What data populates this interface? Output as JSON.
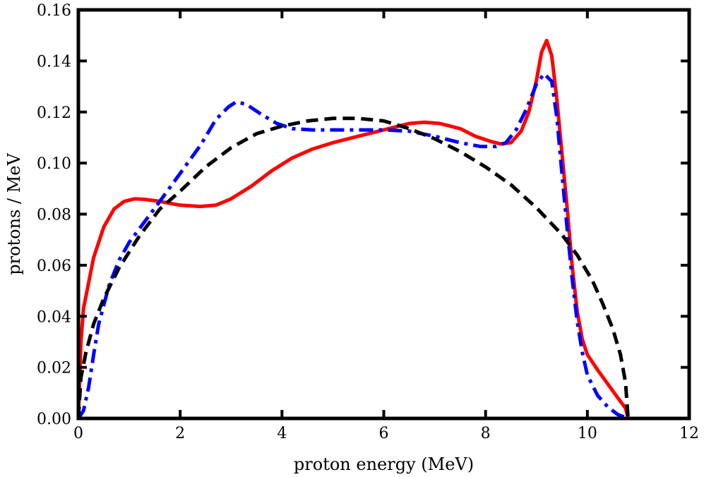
{
  "chart_data": {
    "type": "line",
    "title": "",
    "xlabel": "proton energy (MeV)",
    "ylabel": "protons / MeV",
    "xlim": [
      0,
      12
    ],
    "ylim": [
      0,
      0.16
    ],
    "xticks": [
      0,
      2,
      4,
      6,
      8,
      10,
      12
    ],
    "xtick_labels": [
      "0",
      "2",
      "4",
      "6",
      "8",
      "10",
      "12"
    ],
    "yticks": [
      0,
      0.02,
      0.04,
      0.06,
      0.08,
      0.1,
      0.12,
      0.14,
      0.16
    ],
    "ytick_labels": [
      "0.00",
      "0.02",
      "0.04",
      "0.06",
      "0.08",
      "0.10",
      "0.12",
      "0.14",
      "0.16"
    ],
    "grid": false,
    "legend": "none",
    "series": [
      {
        "name": "red-solid",
        "color": "#ff0000",
        "style": "solid",
        "x": [
          0.0,
          0.05,
          0.1,
          0.2,
          0.3,
          0.5,
          0.7,
          0.9,
          1.1,
          1.3,
          1.6,
          2.0,
          2.4,
          2.7,
          3.0,
          3.4,
          3.8,
          4.2,
          4.6,
          5.0,
          5.5,
          6.0,
          6.5,
          6.8,
          7.1,
          7.5,
          7.8,
          8.1,
          8.3,
          8.5,
          8.7,
          8.85,
          9.0,
          9.1,
          9.2,
          9.3,
          9.4,
          9.5,
          9.6,
          9.7,
          9.8,
          9.9,
          10.0,
          10.2,
          10.4,
          10.6,
          10.75,
          10.8
        ],
        "values": [
          0.0,
          0.03,
          0.043,
          0.053,
          0.063,
          0.075,
          0.082,
          0.085,
          0.086,
          0.0858,
          0.085,
          0.0835,
          0.083,
          0.0835,
          0.086,
          0.091,
          0.097,
          0.102,
          0.1055,
          0.108,
          0.1105,
          0.113,
          0.1155,
          0.116,
          0.1155,
          0.1135,
          0.1105,
          0.1085,
          0.1075,
          0.108,
          0.1125,
          0.12,
          0.1325,
          0.1435,
          0.148,
          0.142,
          0.125,
          0.104,
          0.083,
          0.06,
          0.042,
          0.031,
          0.025,
          0.019,
          0.0135,
          0.008,
          0.004,
          0.0
        ]
      },
      {
        "name": "blue-dashdot",
        "color": "#0000ff",
        "style": "dashdot",
        "x": [
          0.0,
          0.1,
          0.2,
          0.3,
          0.4,
          0.6,
          0.8,
          1.0,
          1.3,
          1.6,
          2.0,
          2.4,
          2.7,
          2.95,
          3.1,
          3.3,
          3.6,
          3.9,
          4.2,
          4.6,
          5.0,
          5.5,
          6.0,
          6.5,
          7.0,
          7.5,
          7.9,
          8.2,
          8.4,
          8.6,
          8.8,
          9.0,
          9.15,
          9.3,
          9.4,
          9.5,
          9.6,
          9.7,
          9.8,
          9.9,
          10.0,
          10.2,
          10.4,
          10.6,
          10.8
        ],
        "values": [
          0.0,
          0.003,
          0.012,
          0.025,
          0.037,
          0.052,
          0.062,
          0.069,
          0.077,
          0.085,
          0.096,
          0.107,
          0.117,
          0.122,
          0.124,
          0.123,
          0.119,
          0.1155,
          0.1135,
          0.113,
          0.113,
          0.113,
          0.113,
          0.1125,
          0.1105,
          0.108,
          0.1065,
          0.1065,
          0.108,
          0.113,
          0.121,
          0.131,
          0.135,
          0.132,
          0.118,
          0.096,
          0.075,
          0.055,
          0.038,
          0.026,
          0.017,
          0.009,
          0.0045,
          0.0015,
          0.0
        ]
      },
      {
        "name": "black-dashed",
        "color": "#000000",
        "style": "dashed",
        "x": [
          0.0,
          0.05,
          0.15,
          0.3,
          0.5,
          0.8,
          1.2,
          1.6,
          2.0,
          2.5,
          3.0,
          3.5,
          4.0,
          4.5,
          5.0,
          5.5,
          6.0,
          6.5,
          7.0,
          7.5,
          8.0,
          8.5,
          9.0,
          9.5,
          9.8,
          10.1,
          10.3,
          10.5,
          10.65,
          10.75,
          10.8
        ],
        "values": [
          0.0,
          0.016,
          0.026,
          0.037,
          0.047,
          0.059,
          0.0715,
          0.082,
          0.089,
          0.0985,
          0.106,
          0.1115,
          0.1145,
          0.1165,
          0.1175,
          0.1175,
          0.1165,
          0.1135,
          0.1095,
          0.1045,
          0.0985,
          0.0915,
          0.0825,
          0.072,
          0.064,
          0.054,
          0.045,
          0.035,
          0.025,
          0.014,
          0.0
        ]
      }
    ]
  }
}
